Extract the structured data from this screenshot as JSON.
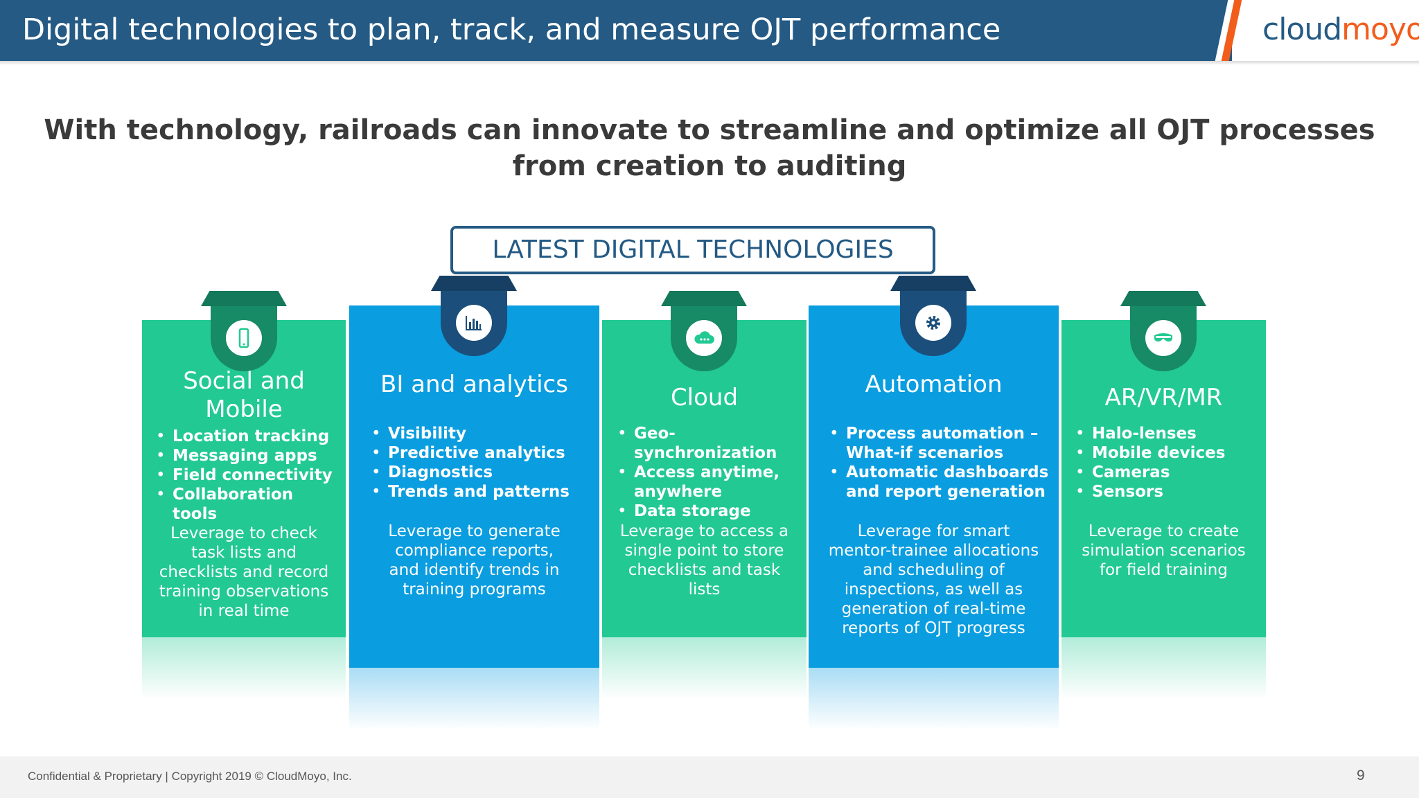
{
  "header": {
    "title": "Digital technologies to plan, track, and measure OJT performance",
    "logo_cloud": "cloud",
    "logo_moyo": "moyo"
  },
  "subtitle": "With technology, railroads can innovate to streamline and optimize all OJT processes from creation to auditing",
  "section_label": "LATEST DIGITAL TECHNOLOGIES",
  "cards": [
    {
      "title": "Social and Mobile",
      "icon": "mobile-phone-icon",
      "color": "#22c993",
      "items": [
        "Location tracking",
        "Messaging apps",
        "Field connectivity",
        "Collaboration tools"
      ],
      "description": "Leverage to check task lists and checklists and record training observations in real time"
    },
    {
      "title": "BI and analytics",
      "icon": "bar-chart-icon",
      "color": "#0a9de0",
      "items": [
        "Visibility",
        "Predictive analytics",
        "Diagnostics",
        "Trends and patterns"
      ],
      "description": "Leverage to generate compliance reports, and identify trends in training programs"
    },
    {
      "title": "Cloud",
      "icon": "cloud-icon",
      "color": "#22c993",
      "items": [
        "Geo-synchronization",
        "Access anytime, anywhere",
        "Data storage"
      ],
      "description": "Leverage to access a single point to store checklists and task lists"
    },
    {
      "title": "Automation",
      "icon": "gear-icon",
      "color": "#0a9de0",
      "items": [
        "Process automation – What-if scenarios",
        "Automatic dashboards and report generation"
      ],
      "description": "Leverage for smart mentor-trainee allocations and scheduling of inspections, as well as generation of real-time reports of OJT progress"
    },
    {
      "title": "AR/VR/MR",
      "icon": "vr-headset-icon",
      "color": "#22c993",
      "items": [
        "Halo-lenses",
        "Mobile devices",
        "Cameras",
        "Sensors"
      ],
      "description": "Leverage to create simulation scenarios for field training"
    }
  ],
  "footer": {
    "text": "Confidential & Proprietary  | Copyright 2019 © CloudMoyo, Inc.",
    "page_number": "9"
  }
}
